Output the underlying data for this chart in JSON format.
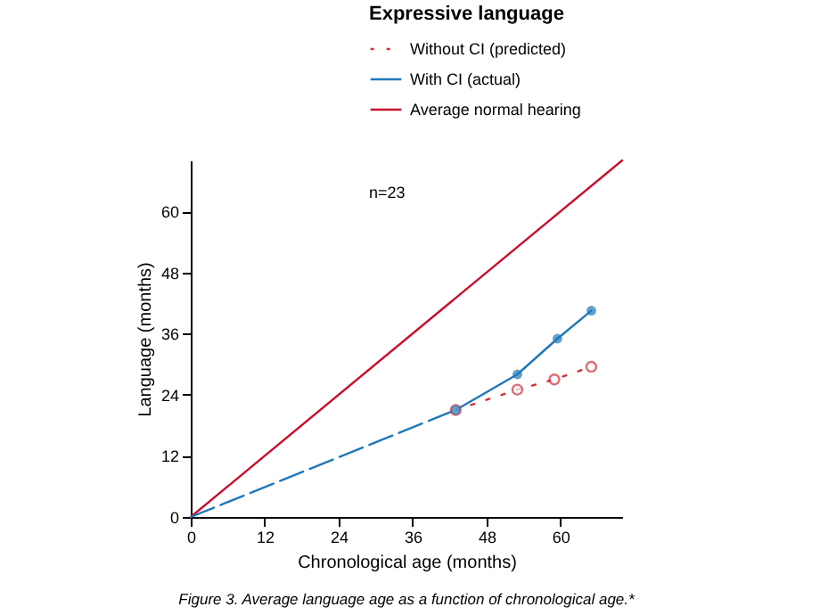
{
  "chart_data": {
    "type": "line",
    "legend_title": "Expressive language",
    "xlabel": "Chronological age (months)",
    "ylabel": "Language (months)",
    "xlim": [
      0,
      70
    ],
    "ylim": [
      0,
      70
    ],
    "xticks": [
      0,
      12,
      24,
      36,
      48,
      60
    ],
    "yticks": [
      0,
      12,
      24,
      36,
      48,
      60
    ],
    "grid": false,
    "legend": "top right",
    "series": [
      {
        "name": "Without CI (predicted)",
        "color": "#d0303a",
        "x": [
          43,
          53,
          59,
          65
        ],
        "values": [
          21,
          25,
          27,
          29.5
        ],
        "line_style": "dotted",
        "marker": "circle"
      },
      {
        "name": "With CI (actual)",
        "color": "#1f78b8",
        "x": [
          43,
          53,
          59.5,
          65
        ],
        "values": [
          21,
          28,
          35,
          40.5
        ],
        "line_style": "solid",
        "marker": "circle"
      },
      {
        "name": "Average normal hearing",
        "color": "#c8102e",
        "x": [
          0,
          70
        ],
        "values": [
          0,
          70
        ],
        "line_style": "solid",
        "marker": "none"
      },
      {
        "color": "#1f78b8",
        "x": [
          0,
          43
        ],
        "values": [
          0,
          21
        ],
        "line_style": "dashed",
        "marker": "none"
      }
    ],
    "annotations": [
      "n=23",
      "Figure 3. Average language age as a function of chronological age.*"
    ]
  }
}
